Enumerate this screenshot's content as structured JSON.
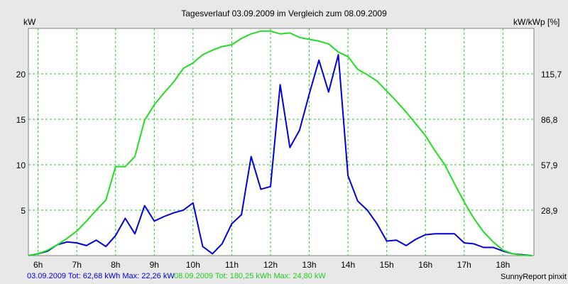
{
  "chart_data": {
    "type": "line",
    "title": "Tagesverlauf 03.09.2009 im Vergleich zum 08.09.2009",
    "ylabel_left": "kW",
    "ylabel_right": "kW/kWp [%]",
    "x_ticks": [
      "6h",
      "7h",
      "8h",
      "9h",
      "10h",
      "11h",
      "12h",
      "13h",
      "14h",
      "15h",
      "16h",
      "17h",
      "18h"
    ],
    "xlim": [
      5.75,
      18.8
    ],
    "ylim": [
      0,
      25
    ],
    "y_ticks_left": [
      "5",
      "10",
      "15",
      "20"
    ],
    "y_ticks_left_values": [
      5,
      10,
      15,
      20
    ],
    "y_ticks_right": [
      "28,9",
      "57,9",
      "86,8",
      "115,7"
    ],
    "grid": true,
    "series": [
      {
        "color": "#0000dd",
        "x": [
          5.75,
          6.0,
          6.25,
          6.5,
          6.75,
          7.0,
          7.25,
          7.5,
          7.75,
          8.0,
          8.25,
          8.5,
          8.75,
          9.0,
          9.25,
          9.5,
          9.75,
          10.0,
          10.25,
          10.5,
          10.75,
          11.0,
          11.25,
          11.5,
          11.75,
          12.0,
          12.25,
          12.5,
          12.75,
          13.0,
          13.25,
          13.5,
          13.75,
          14.0,
          14.25,
          14.5,
          14.75,
          15.0,
          15.25,
          15.5,
          15.75,
          16.0,
          16.25,
          16.5,
          16.75,
          17.0,
          17.25,
          17.5,
          17.75,
          18.0,
          18.25,
          18.5,
          18.75
        ],
        "y": [
          0.0,
          0.2,
          0.5,
          1.2,
          1.5,
          1.4,
          1.1,
          1.7,
          1.0,
          2.2,
          4.1,
          2.4,
          5.5,
          3.8,
          4.3,
          4.7,
          5.0,
          5.8,
          1.0,
          0.2,
          1.3,
          3.5,
          4.5,
          10.9,
          7.3,
          7.6,
          18.8,
          11.9,
          13.8,
          17.8,
          21.5,
          18.0,
          22.1,
          8.8,
          6.0,
          5.0,
          3.5,
          1.6,
          1.7,
          1.1,
          1.8,
          2.3,
          2.4,
          2.4,
          2.4,
          1.4,
          1.3,
          0.9,
          0.9,
          0.5,
          0.2,
          0.1,
          0.0
        ]
      },
      {
        "color": "#22dd22",
        "x": [
          5.75,
          6.0,
          6.25,
          6.5,
          6.75,
          7.0,
          7.25,
          7.5,
          7.75,
          8.0,
          8.25,
          8.5,
          8.75,
          9.0,
          9.25,
          9.5,
          9.75,
          10.0,
          10.25,
          10.5,
          10.75,
          11.0,
          11.25,
          11.5,
          11.75,
          12.0,
          12.25,
          12.5,
          12.75,
          13.0,
          13.25,
          13.5,
          13.75,
          14.0,
          14.25,
          14.5,
          14.75,
          15.0,
          15.25,
          15.5,
          15.75,
          16.0,
          16.25,
          16.5,
          16.75,
          17.0,
          17.25,
          17.5,
          17.75,
          18.0,
          18.25,
          18.5,
          18.75
        ],
        "y": [
          0.0,
          0.2,
          0.6,
          1.2,
          1.9,
          2.7,
          3.8,
          5.0,
          6.1,
          9.8,
          9.8,
          10.9,
          14.9,
          16.6,
          17.9,
          19.1,
          20.6,
          21.2,
          22.1,
          22.6,
          23.0,
          23.2,
          23.9,
          24.4,
          24.7,
          24.7,
          24.4,
          24.5,
          24.0,
          23.8,
          23.6,
          23.3,
          22.4,
          21.9,
          20.5,
          19.9,
          19.2,
          18.1,
          17.0,
          15.8,
          14.5,
          13.2,
          11.5,
          10.0,
          7.9,
          5.9,
          4.1,
          2.6,
          1.5,
          0.6,
          0.2,
          0.05,
          0.0
        ]
      }
    ]
  },
  "footer": {
    "series1_label": "03.09.2009 Tot: 62,68 kWh Max: 22,26 kW",
    "series2_label": "08.09.2009 Tot: 180,25 kWh Max: 24,80 kW",
    "credit": "SunnyReport pinxit"
  }
}
